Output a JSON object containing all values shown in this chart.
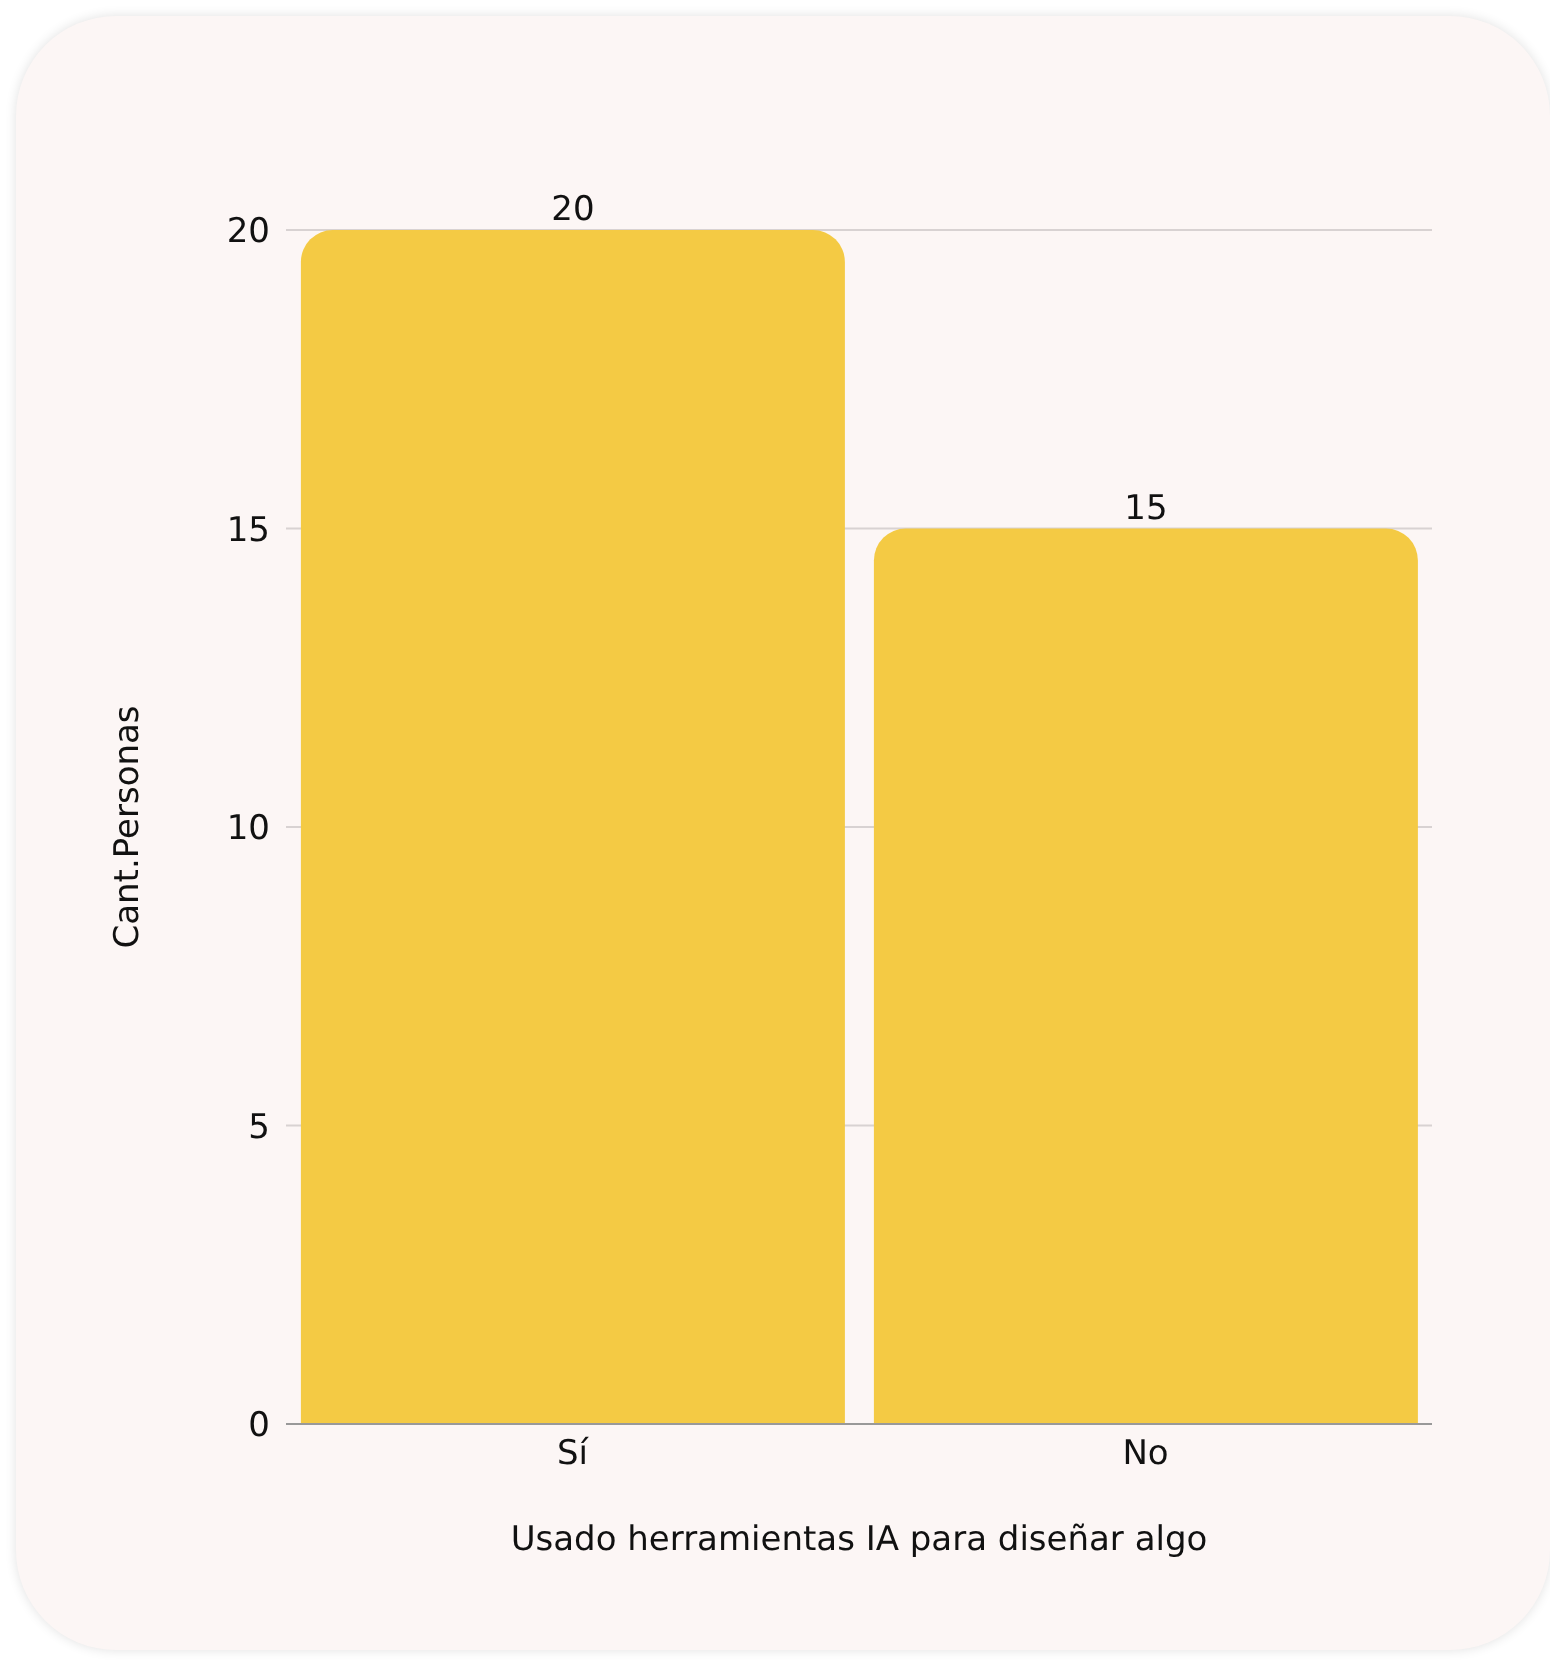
{
  "chart_data": {
    "type": "bar",
    "xlabel": "Usado herramientas IA para diseñar algo",
    "ylabel": "Cant.Personas",
    "categories": [
      "Sí",
      "No"
    ],
    "values": [
      20,
      15
    ],
    "color": "#f4ca44",
    "ylim": [
      0,
      20
    ],
    "yticks": [
      0,
      5,
      10,
      15,
      20
    ],
    "grid": "y",
    "data_labels": true
  }
}
